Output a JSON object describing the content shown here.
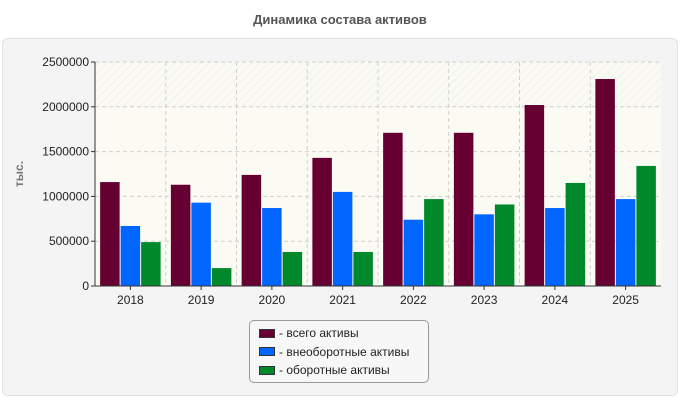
{
  "chart_data": {
    "type": "bar",
    "title": "Динамика состава активов",
    "ylabel": "тыс.",
    "xlabel": "",
    "ylim": [
      0,
      2500000
    ],
    "yticks": [
      0,
      500000,
      1000000,
      1500000,
      2000000,
      2500000
    ],
    "ytick_labels": [
      "0",
      "500000",
      "1000000",
      "1500000",
      "2000000",
      "2500000"
    ],
    "categories": [
      "2018",
      "2019",
      "2020",
      "2021",
      "2022",
      "2023",
      "2024",
      "2025"
    ],
    "series": [
      {
        "name": "- всего активы",
        "color": "#660033",
        "values": [
          1160000,
          1130000,
          1240000,
          1430000,
          1710000,
          1710000,
          2020000,
          2310000
        ]
      },
      {
        "name": "- внеоборотные активы",
        "color": "#0066ff",
        "values": [
          670000,
          930000,
          870000,
          1050000,
          740000,
          800000,
          870000,
          970000
        ]
      },
      {
        "name": "- оборотные активы",
        "color": "#00882b",
        "values": [
          490000,
          200000,
          380000,
          380000,
          970000,
          910000,
          1150000,
          1340000
        ]
      }
    ],
    "grid": true,
    "legend_position": "bottom"
  }
}
